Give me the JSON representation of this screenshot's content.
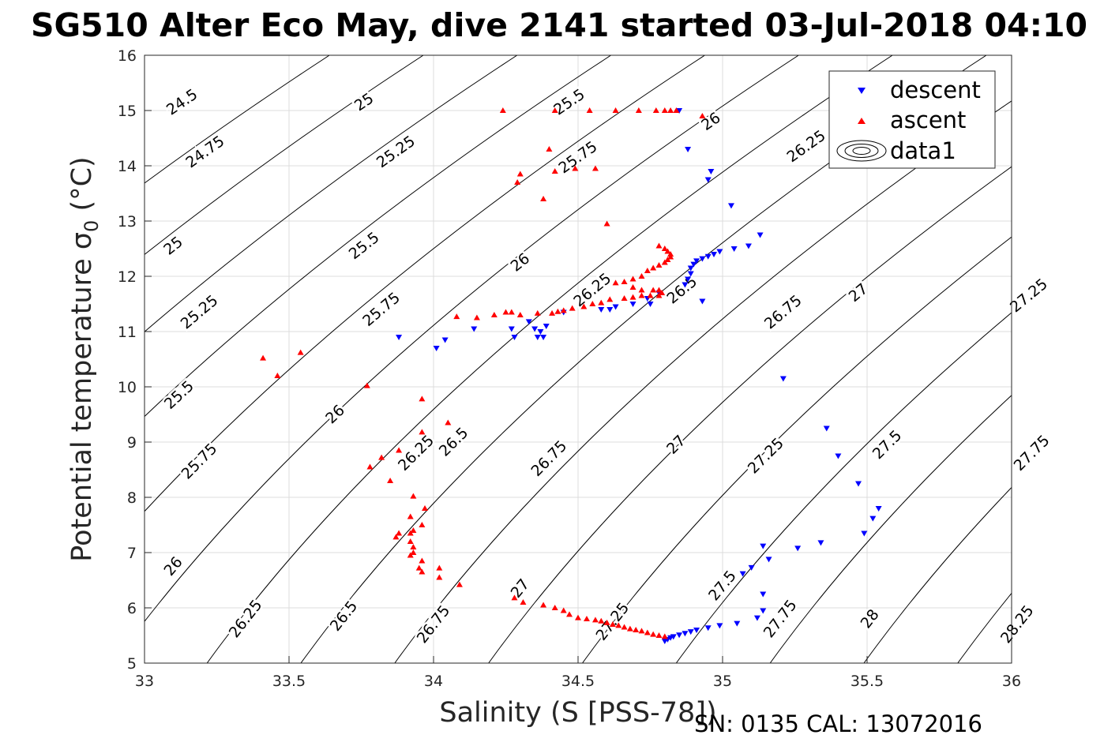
{
  "title": "SG510 Alter Eco May, dive 2141 started 03-Jul-2018 04:10",
  "footer": "SN: 0135  CAL: 13072016",
  "colors": {
    "descent": "#0000ff",
    "ascent": "#ff0000",
    "contour": "#000000",
    "grid": "#dcdcdc"
  },
  "chart_data": {
    "type": "scatter",
    "title": "SG510 Alter Eco May, dive 2141 started 03-Jul-2018 04:10",
    "xlabel": "Salinity (S [PSS-78])",
    "ylabel": "Potential temperature σ",
    "ylabel_sub": "0",
    "ylabel_unit": " (°C)",
    "xlim": [
      33,
      36
    ],
    "ylim": [
      5,
      16
    ],
    "xticks": [
      33,
      33.5,
      34,
      34.5,
      35,
      35.5,
      36
    ],
    "xtick_labels": [
      "33",
      "33.5",
      "34",
      "34.5",
      "35",
      "35.5",
      "36"
    ],
    "yticks": [
      5,
      6,
      7,
      8,
      9,
      10,
      11,
      12,
      13,
      14,
      15,
      16
    ],
    "ytick_labels": [
      "5",
      "6",
      "7",
      "8",
      "9",
      "10",
      "11",
      "12",
      "13",
      "14",
      "15",
      "16"
    ],
    "grid": true,
    "legend_position": "top-right",
    "legend": [
      "descent",
      "ascent",
      "data1"
    ],
    "contours": {
      "levels": [
        24.5,
        24.75,
        25,
        25.25,
        25.5,
        25.75,
        26,
        26.25,
        26.5,
        26.75,
        27,
        27.25,
        27.5,
        27.75,
        28,
        28.25
      ],
      "labels": [
        {
          "text": "24.5",
          "s": 33.13,
          "t": 15.15
        },
        {
          "text": "24.75",
          "s": 33.21,
          "t": 14.25
        },
        {
          "text": "25",
          "s": 33.1,
          "t": 12.55
        },
        {
          "text": "25.25",
          "s": 33.19,
          "t": 11.35
        },
        {
          "text": "25.5",
          "s": 33.12,
          "t": 9.85
        },
        {
          "text": "25.75",
          "s": 33.19,
          "t": 8.65
        },
        {
          "text": "26",
          "s": 33.1,
          "t": 6.75
        },
        {
          "text": "26.25",
          "s": 33.35,
          "t": 5.8
        },
        {
          "text": "25",
          "s": 33.76,
          "t": 15.15
        },
        {
          "text": "25.25",
          "s": 33.87,
          "t": 14.25
        },
        {
          "text": "25.5",
          "s": 33.76,
          "t": 12.55
        },
        {
          "text": "25.75",
          "s": 33.82,
          "t": 11.4
        },
        {
          "text": "26",
          "s": 33.66,
          "t": 9.5
        },
        {
          "text": "26.25",
          "s": 33.94,
          "t": 8.8
        },
        {
          "text": "26.5",
          "s": 33.69,
          "t": 5.85
        },
        {
          "text": "25.5",
          "s": 34.47,
          "t": 15.15
        },
        {
          "text": "25.75",
          "s": 34.5,
          "t": 14.15
        },
        {
          "text": "26",
          "s": 34.3,
          "t": 12.25
        },
        {
          "text": "26.25",
          "s": 34.55,
          "t": 11.75
        },
        {
          "text": "26.5",
          "s": 34.07,
          "t": 9.0
        },
        {
          "text": "26.75",
          "s": 34.0,
          "t": 5.7
        },
        {
          "text": "26",
          "s": 34.96,
          "t": 14.8
        },
        {
          "text": "26.5",
          "s": 34.86,
          "t": 11.75
        },
        {
          "text": "26.75",
          "s": 34.4,
          "t": 8.7
        },
        {
          "text": "27",
          "s": 34.3,
          "t": 6.35
        },
        {
          "text": "26.25",
          "s": 35.29,
          "t": 14.35
        },
        {
          "text": "26.75",
          "s": 35.21,
          "t": 11.35
        },
        {
          "text": "27",
          "s": 34.84,
          "t": 8.95
        },
        {
          "text": "27.25",
          "s": 34.62,
          "t": 5.75
        },
        {
          "text": "27",
          "s": 35.47,
          "t": 11.7
        },
        {
          "text": "27.25",
          "s": 35.15,
          "t": 8.75
        },
        {
          "text": "27.5",
          "s": 35.0,
          "t": 6.4
        },
        {
          "text": "27.25",
          "s": 36.06,
          "t": 11.65
        },
        {
          "text": "27.5",
          "s": 35.57,
          "t": 8.95
        },
        {
          "text": "27.75",
          "s": 35.2,
          "t": 5.8
        },
        {
          "text": "27.75",
          "s": 36.07,
          "t": 8.8
        },
        {
          "text": "28",
          "s": 35.51,
          "t": 5.8
        },
        {
          "text": "28.25",
          "s": 36.02,
          "t": 5.7
        }
      ]
    },
    "series": [
      {
        "name": "descent",
        "marker": "triangle-down",
        "color": "#0000ff",
        "points": [
          [
            34.85,
            15.0
          ],
          [
            34.88,
            14.3
          ],
          [
            34.96,
            13.9
          ],
          [
            34.95,
            13.75
          ],
          [
            35.03,
            13.28
          ],
          [
            35.13,
            12.75
          ],
          [
            35.09,
            12.55
          ],
          [
            35.04,
            12.5
          ],
          [
            34.99,
            12.45
          ],
          [
            34.97,
            12.4
          ],
          [
            34.95,
            12.36
          ],
          [
            34.93,
            12.32
          ],
          [
            34.91,
            12.28
          ],
          [
            34.9,
            12.22
          ],
          [
            34.89,
            12.15
          ],
          [
            34.89,
            12.05
          ],
          [
            34.88,
            11.95
          ],
          [
            34.87,
            11.85
          ],
          [
            34.93,
            11.55
          ],
          [
            34.78,
            11.7
          ],
          [
            34.74,
            11.6
          ],
          [
            34.75,
            11.5
          ],
          [
            34.69,
            11.5
          ],
          [
            34.63,
            11.45
          ],
          [
            34.61,
            11.4
          ],
          [
            34.58,
            11.4
          ],
          [
            34.45,
            11.35
          ],
          [
            34.39,
            11.1
          ],
          [
            34.37,
            11.0
          ],
          [
            34.35,
            11.05
          ],
          [
            34.38,
            10.9
          ],
          [
            34.36,
            10.9
          ],
          [
            34.33,
            11.18
          ],
          [
            34.28,
            10.9
          ],
          [
            34.27,
            11.05
          ],
          [
            34.14,
            11.05
          ],
          [
            34.04,
            10.85
          ],
          [
            34.01,
            10.7
          ],
          [
            33.88,
            10.9
          ],
          [
            35.21,
            10.15
          ],
          [
            35.36,
            9.25
          ],
          [
            35.4,
            8.75
          ],
          [
            35.47,
            8.25
          ],
          [
            35.54,
            7.8
          ],
          [
            35.52,
            7.62
          ],
          [
            35.49,
            7.35
          ],
          [
            35.34,
            7.18
          ],
          [
            35.26,
            7.08
          ],
          [
            35.14,
            7.12
          ],
          [
            35.16,
            6.88
          ],
          [
            35.1,
            6.73
          ],
          [
            35.07,
            6.62
          ],
          [
            35.14,
            6.25
          ],
          [
            35.14,
            5.95
          ],
          [
            35.12,
            5.82
          ],
          [
            35.05,
            5.72
          ],
          [
            34.99,
            5.68
          ],
          [
            34.95,
            5.64
          ],
          [
            34.91,
            5.6
          ],
          [
            34.89,
            5.57
          ],
          [
            34.87,
            5.54
          ],
          [
            34.85,
            5.51
          ],
          [
            34.83,
            5.48
          ],
          [
            34.82,
            5.46
          ],
          [
            34.81,
            5.43
          ],
          [
            34.8,
            5.4
          ]
        ]
      },
      {
        "name": "ascent",
        "marker": "triangle-up",
        "color": "#ff0000",
        "points": [
          [
            34.24,
            15.0
          ],
          [
            34.42,
            15.0
          ],
          [
            34.54,
            15.0
          ],
          [
            34.63,
            15.0
          ],
          [
            34.71,
            15.0
          ],
          [
            34.77,
            15.0
          ],
          [
            34.8,
            15.0
          ],
          [
            34.82,
            15.0
          ],
          [
            34.84,
            15.0
          ],
          [
            34.93,
            14.9
          ],
          [
            34.4,
            14.3
          ],
          [
            34.42,
            13.9
          ],
          [
            34.49,
            13.95
          ],
          [
            34.56,
            13.95
          ],
          [
            34.3,
            13.85
          ],
          [
            34.29,
            13.7
          ],
          [
            34.38,
            13.4
          ],
          [
            34.6,
            12.95
          ],
          [
            34.78,
            12.55
          ],
          [
            34.8,
            12.5
          ],
          [
            34.81,
            12.45
          ],
          [
            34.82,
            12.4
          ],
          [
            34.82,
            12.35
          ],
          [
            34.81,
            12.3
          ],
          [
            34.8,
            12.25
          ],
          [
            34.78,
            12.2
          ],
          [
            34.76,
            12.15
          ],
          [
            34.74,
            12.1
          ],
          [
            34.72,
            12.0
          ],
          [
            34.69,
            11.95
          ],
          [
            34.66,
            11.9
          ],
          [
            34.63,
            11.88
          ],
          [
            34.69,
            11.8
          ],
          [
            34.72,
            11.75
          ],
          [
            34.76,
            11.75
          ],
          [
            34.78,
            11.75
          ],
          [
            34.79,
            11.7
          ],
          [
            34.78,
            11.65
          ],
          [
            34.75,
            11.65
          ],
          [
            34.72,
            11.65
          ],
          [
            34.69,
            11.62
          ],
          [
            34.66,
            11.6
          ],
          [
            34.61,
            11.58
          ],
          [
            34.58,
            11.52
          ],
          [
            34.55,
            11.5
          ],
          [
            34.52,
            11.45
          ],
          [
            34.48,
            11.42
          ],
          [
            34.45,
            11.38
          ],
          [
            34.43,
            11.36
          ],
          [
            34.41,
            11.33
          ],
          [
            34.36,
            11.33
          ],
          [
            34.3,
            11.3
          ],
          [
            34.27,
            11.35
          ],
          [
            34.25,
            11.35
          ],
          [
            34.21,
            11.3
          ],
          [
            34.15,
            11.25
          ],
          [
            34.08,
            11.27
          ],
          [
            33.41,
            10.52
          ],
          [
            33.46,
            10.2
          ],
          [
            33.54,
            10.62
          ],
          [
            33.77,
            10.02
          ],
          [
            33.96,
            9.78
          ],
          [
            34.05,
            9.35
          ],
          [
            33.96,
            9.18
          ],
          [
            33.88,
            8.85
          ],
          [
            33.82,
            8.72
          ],
          [
            33.78,
            8.55
          ],
          [
            33.85,
            8.3
          ],
          [
            33.93,
            8.02
          ],
          [
            33.97,
            7.8
          ],
          [
            33.92,
            7.65
          ],
          [
            33.96,
            7.5
          ],
          [
            33.93,
            7.4
          ],
          [
            33.92,
            7.35
          ],
          [
            33.88,
            7.35
          ],
          [
            33.87,
            7.28
          ],
          [
            33.92,
            7.2
          ],
          [
            33.93,
            7.1
          ],
          [
            33.93,
            7.0
          ],
          [
            33.92,
            6.95
          ],
          [
            33.96,
            6.85
          ],
          [
            33.95,
            6.72
          ],
          [
            33.96,
            6.65
          ],
          [
            34.02,
            6.72
          ],
          [
            34.02,
            6.55
          ],
          [
            34.09,
            6.42
          ],
          [
            34.28,
            6.18
          ],
          [
            34.31,
            6.1
          ],
          [
            34.38,
            6.05
          ],
          [
            34.42,
            6.0
          ],
          [
            34.45,
            5.95
          ],
          [
            34.47,
            5.88
          ],
          [
            34.5,
            5.82
          ],
          [
            34.53,
            5.8
          ],
          [
            34.56,
            5.78
          ],
          [
            34.58,
            5.76
          ],
          [
            34.6,
            5.73
          ],
          [
            34.62,
            5.7
          ],
          [
            34.64,
            5.68
          ],
          [
            34.66,
            5.65
          ],
          [
            34.68,
            5.62
          ],
          [
            34.7,
            5.6
          ],
          [
            34.72,
            5.58
          ],
          [
            34.74,
            5.55
          ],
          [
            34.76,
            5.52
          ],
          [
            34.78,
            5.5
          ],
          [
            34.8,
            5.48
          ]
        ]
      }
    ]
  }
}
